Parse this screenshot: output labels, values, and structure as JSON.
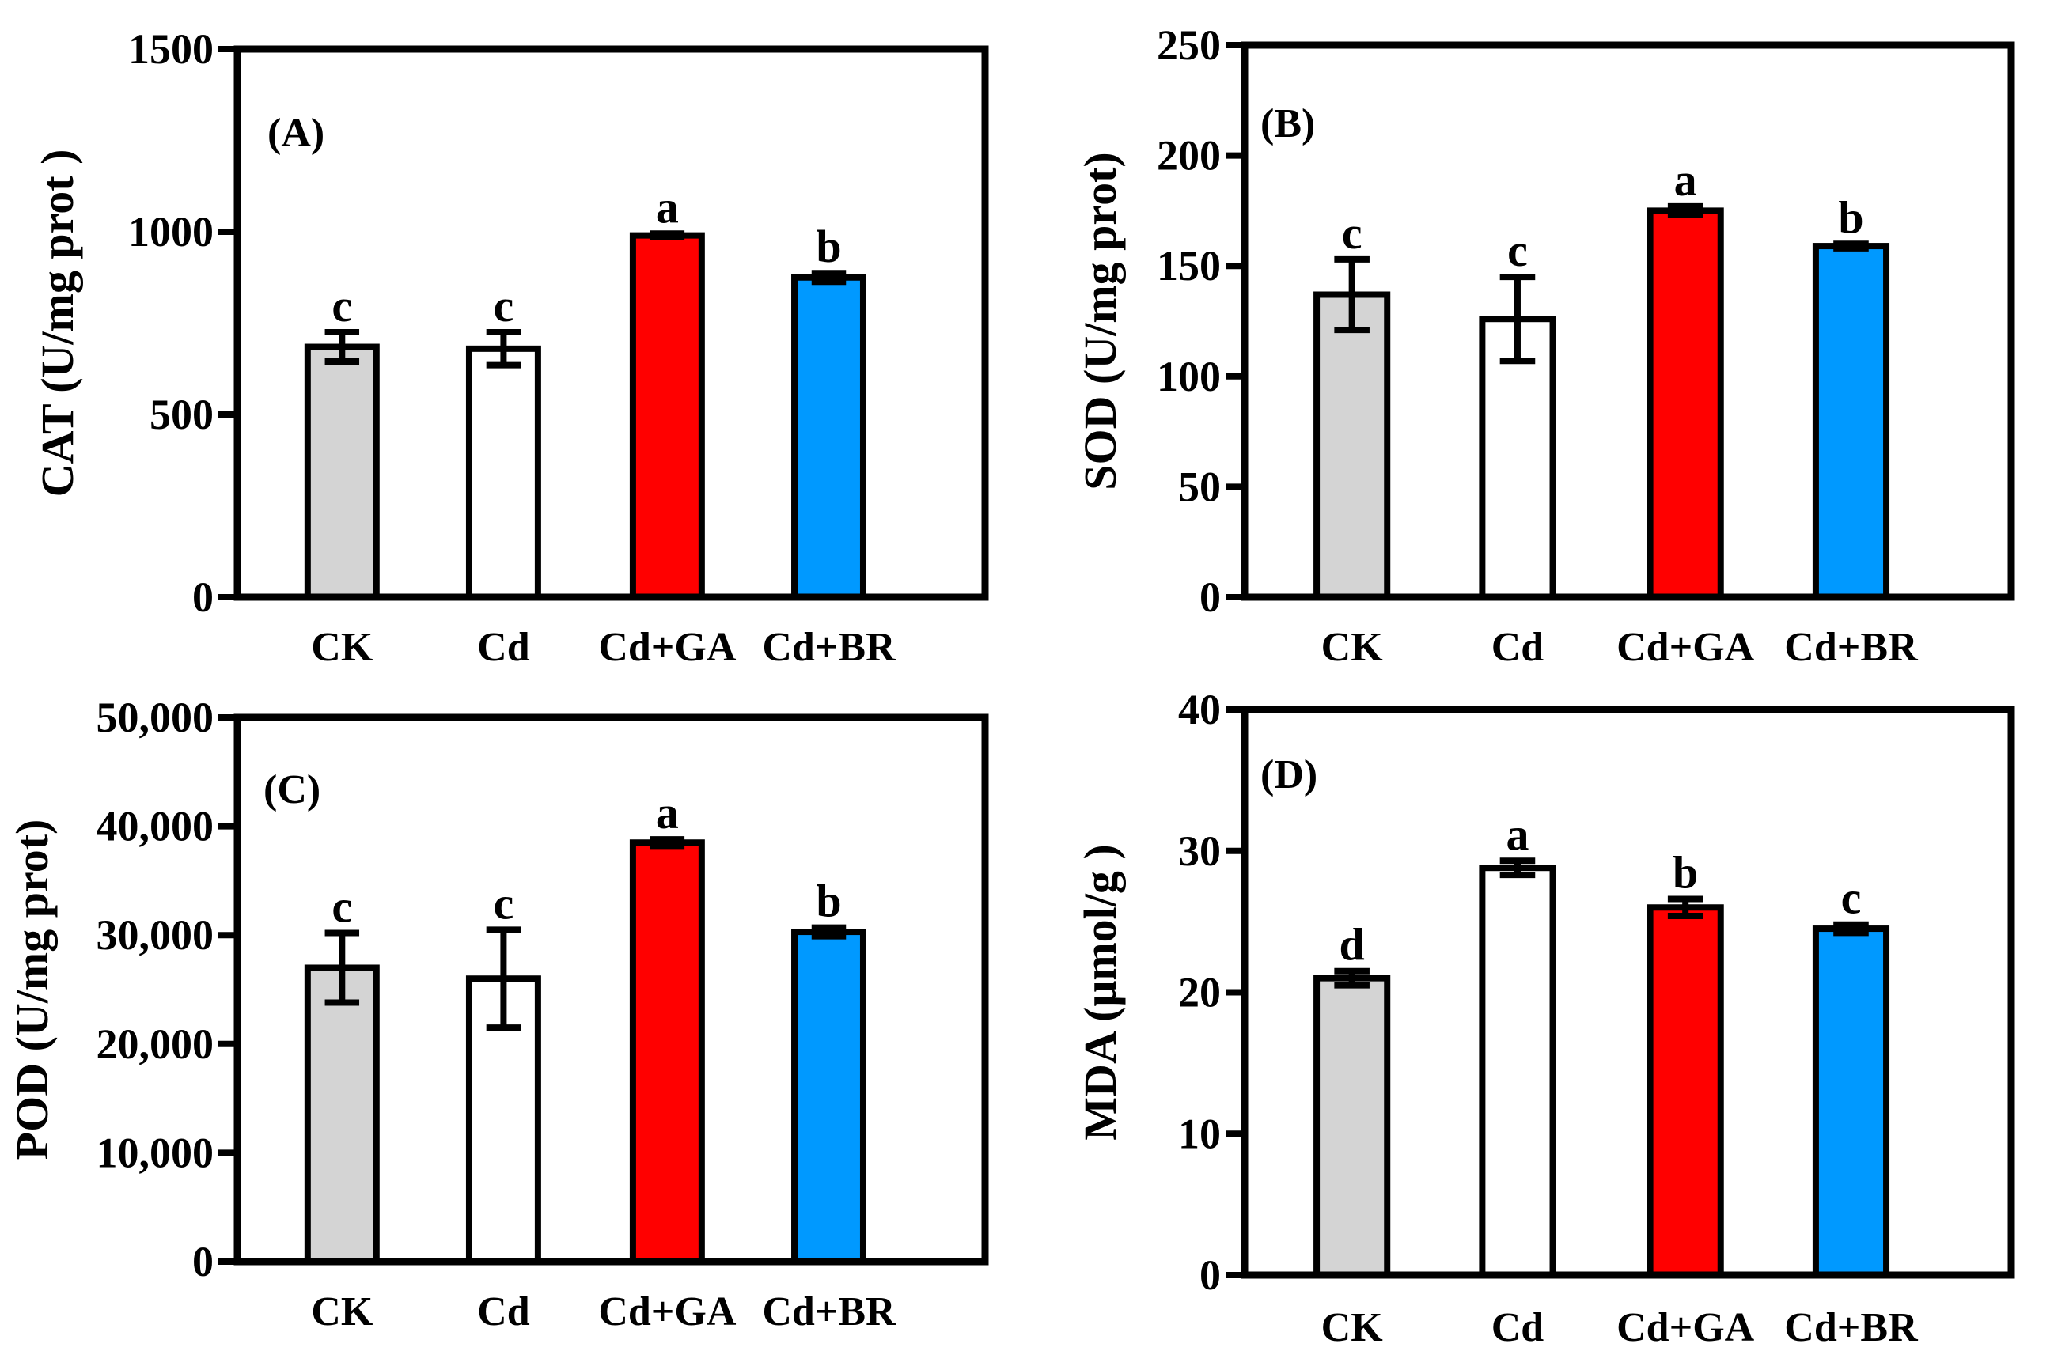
{
  "figure": {
    "category_labels": [
      "CK",
      "Cd",
      "Cd+GA",
      "Cd+BR"
    ],
    "colors": {
      "CK": "#d4d4d4",
      "Cd": "#ffffff",
      "Cd+GA": "#ff0000",
      "Cd+BR": "#0099ff",
      "axis": "#000000"
    }
  },
  "chart_data": [
    {
      "type": "bar",
      "panel_label": "(A)",
      "ylabel": "CAT (U/mg prot )",
      "categories": [
        "CK",
        "Cd",
        "Cd+GA",
        "Cd+BR"
      ],
      "values": [
        685,
        680,
        990,
        875
      ],
      "errors": [
        40,
        45,
        5,
        12
      ],
      "letters": [
        "c",
        "c",
        "a",
        "b"
      ],
      "ylim": [
        0,
        1500
      ],
      "yticks": [
        0,
        500,
        1000,
        1500
      ],
      "ytick_labels": [
        "0",
        "500",
        "1000",
        "1500"
      ],
      "grid": false
    },
    {
      "type": "bar",
      "panel_label": "(B)",
      "ylabel": "SOD (U/mg prot)",
      "categories": [
        "CK",
        "Cd",
        "Cd+GA",
        "Cd+BR"
      ],
      "values": [
        137,
        126,
        175,
        159
      ],
      "errors": [
        16,
        19,
        2,
        1
      ],
      "letters": [
        "c",
        "c",
        "a",
        "b"
      ],
      "ylim": [
        0,
        250
      ],
      "yticks": [
        0,
        50,
        100,
        150,
        200,
        250
      ],
      "ytick_labels": [
        "0",
        "50",
        "100",
        "150",
        "200",
        "250"
      ],
      "grid": false
    },
    {
      "type": "bar",
      "panel_label": "(C)",
      "ylabel": "POD (U/mg prot)",
      "categories": [
        "CK",
        "Cd",
        "Cd+GA",
        "Cd+BR"
      ],
      "values": [
        27000,
        26000,
        38500,
        30300
      ],
      "errors": [
        3200,
        4500,
        300,
        400
      ],
      "letters": [
        "c",
        "c",
        "a",
        "b"
      ],
      "ylim": [
        0,
        50000
      ],
      "yticks": [
        0,
        10000,
        20000,
        30000,
        40000,
        50000
      ],
      "ytick_labels": [
        "0",
        "10,000",
        "20,000",
        "30,000",
        "40,000",
        "50,000"
      ],
      "grid": false
    },
    {
      "type": "bar",
      "panel_label": "(D)",
      "ylabel": "MDA (μmol/g )",
      "categories": [
        "CK",
        "Cd",
        "Cd+GA",
        "Cd+BR"
      ],
      "values": [
        21.0,
        28.8,
        26.0,
        24.5
      ],
      "errors": [
        0.5,
        0.5,
        0.6,
        0.3
      ],
      "letters": [
        "d",
        "a",
        "b",
        "c"
      ],
      "ylim": [
        0,
        40
      ],
      "yticks": [
        0,
        10,
        20,
        30,
        40
      ],
      "ytick_labels": [
        "0",
        "10",
        "20",
        "30",
        "40"
      ],
      "grid": false
    }
  ]
}
